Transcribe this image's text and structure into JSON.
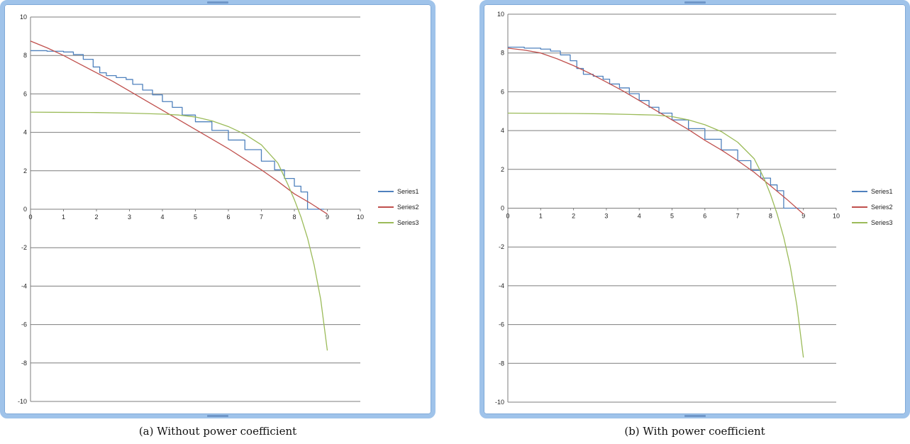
{
  "chart_data": [
    {
      "type": "line",
      "caption": "(a) Without power coefficient",
      "xlim": [
        0,
        10
      ],
      "ylim": [
        -10,
        10
      ],
      "x_ticks": [
        "0",
        "1",
        "2",
        "3",
        "4",
        "5",
        "6",
        "7",
        "8",
        "9",
        "10"
      ],
      "y_ticks": [
        "10",
        "8",
        "6",
        "4",
        "2",
        "0",
        "-2",
        "-4",
        "-6",
        "-8",
        "-10"
      ],
      "grid": "horizontal",
      "legend_position": "right",
      "series": [
        {
          "name": "Series1",
          "color": "#4f81bd",
          "style": "stepped",
          "points": [
            [
              0,
              8.25
            ],
            [
              0.5,
              8.22
            ],
            [
              1.0,
              8.18
            ],
            [
              1.3,
              8.05
            ],
            [
              1.6,
              7.8
            ],
            [
              1.9,
              7.4
            ],
            [
              2.1,
              7.1
            ],
            [
              2.3,
              6.95
            ],
            [
              2.6,
              6.85
            ],
            [
              2.9,
              6.75
            ],
            [
              3.1,
              6.5
            ],
            [
              3.4,
              6.2
            ],
            [
              3.7,
              5.95
            ],
            [
              4.0,
              5.6
            ],
            [
              4.3,
              5.3
            ],
            [
              4.6,
              4.9
            ],
            [
              5.0,
              4.55
            ],
            [
              5.5,
              4.1
            ],
            [
              6.0,
              3.6
            ],
            [
              6.5,
              3.1
            ],
            [
              7.0,
              2.5
            ],
            [
              7.4,
              2.05
            ],
            [
              7.7,
              1.6
            ],
            [
              8.0,
              1.2
            ],
            [
              8.2,
              0.9
            ],
            [
              8.4,
              0.65
            ],
            [
              8.4,
              0.0
            ],
            [
              8.9,
              0.0
            ]
          ]
        },
        {
          "name": "Series2",
          "color": "#c0504d",
          "style": "smooth",
          "points": [
            [
              0,
              8.75
            ],
            [
              0.5,
              8.4
            ],
            [
              1.0,
              8.0
            ],
            [
              1.5,
              7.55
            ],
            [
              2.0,
              7.1
            ],
            [
              2.5,
              6.65
            ],
            [
              3.0,
              6.15
            ],
            [
              3.5,
              5.65
            ],
            [
              4.0,
              5.15
            ],
            [
              4.5,
              4.65
            ],
            [
              5.0,
              4.15
            ],
            [
              5.5,
              3.65
            ],
            [
              6.0,
              3.15
            ],
            [
              6.5,
              2.6
            ],
            [
              7.0,
              2.05
            ],
            [
              7.5,
              1.45
            ],
            [
              8.0,
              0.8
            ],
            [
              8.5,
              0.3
            ],
            [
              9.0,
              -0.25
            ]
          ]
        },
        {
          "name": "Series3",
          "color": "#9bbb59",
          "style": "smooth",
          "points": [
            [
              0,
              5.05
            ],
            [
              1.0,
              5.04
            ],
            [
              2.0,
              5.03
            ],
            [
              3.0,
              5.0
            ],
            [
              4.0,
              4.95
            ],
            [
              4.5,
              4.9
            ],
            [
              5.0,
              4.8
            ],
            [
              5.5,
              4.6
            ],
            [
              6.0,
              4.3
            ],
            [
              6.5,
              3.9
            ],
            [
              7.0,
              3.35
            ],
            [
              7.5,
              2.4
            ],
            [
              7.8,
              1.3
            ],
            [
              8.0,
              0.5
            ],
            [
              8.2,
              -0.4
            ],
            [
              8.4,
              -1.5
            ],
            [
              8.6,
              -2.9
            ],
            [
              8.8,
              -4.7
            ],
            [
              9.0,
              -7.35
            ]
          ]
        }
      ]
    },
    {
      "type": "line",
      "caption": "(b) With power coefficient",
      "xlim": [
        0,
        10
      ],
      "ylim": [
        -10,
        10
      ],
      "x_ticks": [
        "0",
        "1",
        "2",
        "3",
        "4",
        "5",
        "6",
        "7",
        "8",
        "9",
        "10"
      ],
      "y_ticks": [
        "10",
        "8",
        "6",
        "4",
        "2",
        "0",
        "-2",
        "-4",
        "-6",
        "-8",
        "-10"
      ],
      "grid": "horizontal",
      "legend_position": "right",
      "series": [
        {
          "name": "Series1",
          "color": "#4f81bd",
          "style": "stepped",
          "points": [
            [
              0,
              8.3
            ],
            [
              0.5,
              8.25
            ],
            [
              1.0,
              8.2
            ],
            [
              1.3,
              8.1
            ],
            [
              1.6,
              7.9
            ],
            [
              1.9,
              7.6
            ],
            [
              2.1,
              7.2
            ],
            [
              2.3,
              6.9
            ],
            [
              2.6,
              6.8
            ],
            [
              2.9,
              6.65
            ],
            [
              3.1,
              6.4
            ],
            [
              3.4,
              6.2
            ],
            [
              3.7,
              5.9
            ],
            [
              4.0,
              5.55
            ],
            [
              4.3,
              5.2
            ],
            [
              4.6,
              4.9
            ],
            [
              5.0,
              4.55
            ],
            [
              5.5,
              4.1
            ],
            [
              6.0,
              3.55
            ],
            [
              6.5,
              3.0
            ],
            [
              7.0,
              2.45
            ],
            [
              7.4,
              1.95
            ],
            [
              7.7,
              1.55
            ],
            [
              8.0,
              1.2
            ],
            [
              8.2,
              0.9
            ],
            [
              8.4,
              0.65
            ],
            [
              8.4,
              0.0
            ],
            [
              8.9,
              0.0
            ]
          ]
        },
        {
          "name": "Series2",
          "color": "#c0504d",
          "style": "smooth",
          "points": [
            [
              0,
              8.25
            ],
            [
              0.5,
              8.15
            ],
            [
              1.0,
              8.0
            ],
            [
              1.5,
              7.7
            ],
            [
              2.0,
              7.35
            ],
            [
              2.5,
              6.95
            ],
            [
              3.0,
              6.5
            ],
            [
              3.5,
              6.05
            ],
            [
              4.0,
              5.55
            ],
            [
              4.5,
              5.05
            ],
            [
              5.0,
              4.55
            ],
            [
              5.5,
              4.05
            ],
            [
              6.0,
              3.5
            ],
            [
              6.5,
              3.0
            ],
            [
              7.0,
              2.45
            ],
            [
              7.5,
              1.85
            ],
            [
              8.0,
              1.15
            ],
            [
              8.5,
              0.45
            ],
            [
              9.0,
              -0.3
            ]
          ]
        },
        {
          "name": "Series3",
          "color": "#9bbb59",
          "style": "smooth",
          "points": [
            [
              0,
              4.9
            ],
            [
              1.0,
              4.89
            ],
            [
              2.0,
              4.88
            ],
            [
              3.0,
              4.86
            ],
            [
              4.0,
              4.82
            ],
            [
              4.5,
              4.8
            ],
            [
              5.0,
              4.72
            ],
            [
              5.5,
              4.55
            ],
            [
              6.0,
              4.3
            ],
            [
              6.5,
              3.95
            ],
            [
              7.0,
              3.4
            ],
            [
              7.5,
              2.55
            ],
            [
              7.8,
              1.55
            ],
            [
              8.0,
              0.7
            ],
            [
              8.2,
              -0.3
            ],
            [
              8.4,
              -1.5
            ],
            [
              8.6,
              -3.0
            ],
            [
              8.8,
              -5.0
            ],
            [
              9.0,
              -7.7
            ]
          ]
        }
      ]
    }
  ]
}
